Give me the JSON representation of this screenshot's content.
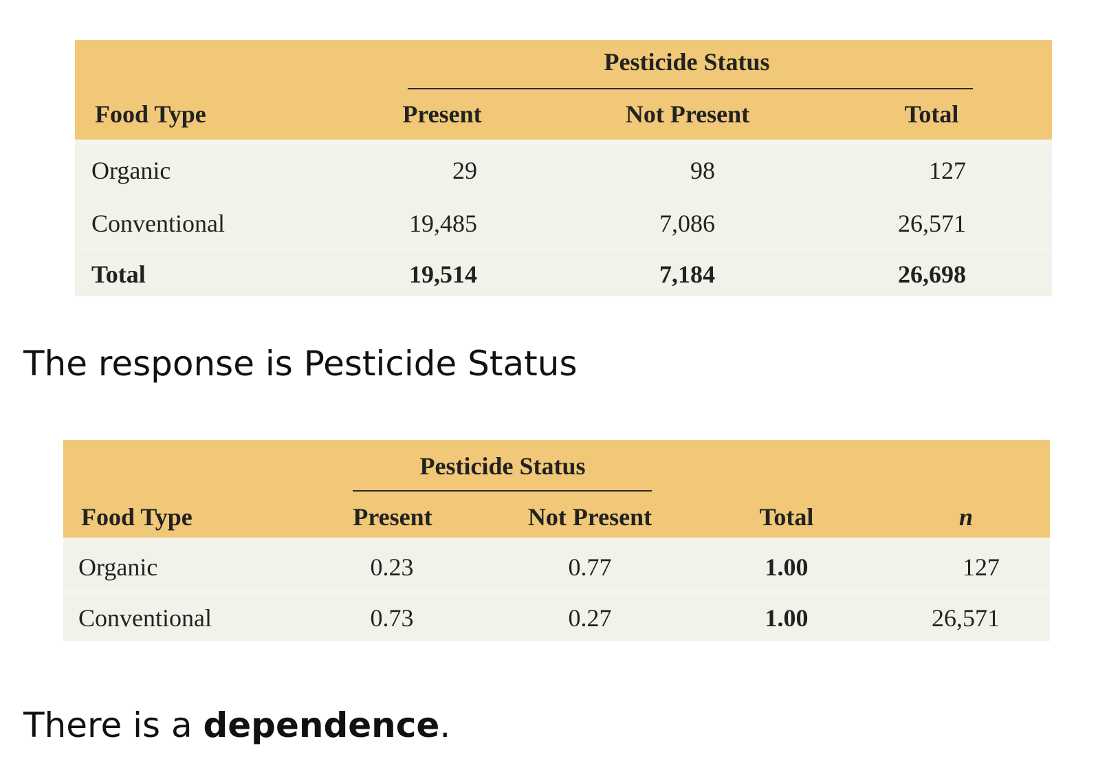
{
  "table1": {
    "group_header": "Pesticide Status",
    "columns": [
      "Food Type",
      "Present",
      "Not Present",
      "Total"
    ],
    "rows": [
      {
        "label": "Organic",
        "present": "29",
        "not_present": "98",
        "total": "127"
      },
      {
        "label": "Conventional",
        "present": "19,485",
        "not_present": "7,086",
        "total": "26,571"
      }
    ],
    "total_row": {
      "label": "Total",
      "present": "19,514",
      "not_present": "7,184",
      "total": "26,698"
    }
  },
  "caption1": "The response is Pesticide Status",
  "table2": {
    "group_header": "Pesticide Status",
    "columns": [
      "Food Type",
      "Present",
      "Not Present",
      "Total",
      "n"
    ],
    "rows": [
      {
        "label": "Organic",
        "present": "0.23",
        "not_present": "0.77",
        "total": "1.00",
        "n": "127"
      },
      {
        "label": "Conventional",
        "present": "0.73",
        "not_present": "0.27",
        "total": "1.00",
        "n": "26,571"
      }
    ]
  },
  "caption2": {
    "prefix": "There is a ",
    "emphasis": "dependence",
    "suffix": "."
  },
  "colors": {
    "header_bg": "#f0c877",
    "row_bg": "#f2f2ea"
  }
}
